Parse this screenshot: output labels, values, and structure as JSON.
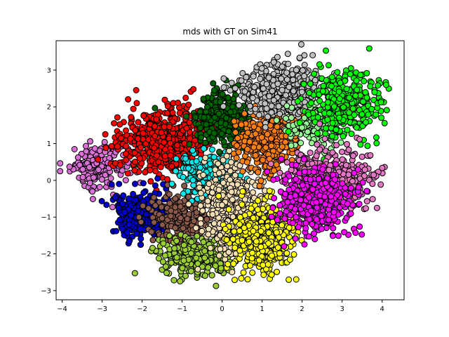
{
  "chart_data": {
    "type": "scatter",
    "title": "mds with GT on Sim41",
    "xlabel": "",
    "ylabel": "",
    "xlim": [
      -4.15,
      4.55
    ],
    "ylim": [
      -3.25,
      3.8
    ],
    "xticks": [
      -4,
      -3,
      -2,
      -1,
      0,
      1,
      2,
      3,
      4
    ],
    "yticks": [
      -3,
      -2,
      -1,
      0,
      1,
      2,
      3
    ],
    "xtick_labels": [
      "−4",
      "−3",
      "−2",
      "−1",
      "0",
      "1",
      "2",
      "3",
      "4"
    ],
    "ytick_labels": [
      "−3",
      "−2",
      "−1",
      "0",
      "1",
      "2",
      "3"
    ],
    "grid": false,
    "legend": "none",
    "marker_edge_color": "#000000",
    "clusters": [
      {
        "color": "#da70d6",
        "center": [
          -3.1,
          0.35
        ],
        "spread": [
          0.32,
          0.32
        ],
        "count": 160
      },
      {
        "color": "#ff0000",
        "center": [
          -1.45,
          1.05
        ],
        "spread": [
          0.55,
          0.42
        ],
        "count": 620
      },
      {
        "color": "#0000cd",
        "center": [
          -2.0,
          -0.9
        ],
        "spread": [
          0.38,
          0.32
        ],
        "count": 300
      },
      {
        "color": "#8b5a4a",
        "center": [
          -1.1,
          -1.0
        ],
        "spread": [
          0.35,
          0.35
        ],
        "count": 220
      },
      {
        "color": "#9acd32",
        "center": [
          -0.65,
          -2.1
        ],
        "spread": [
          0.45,
          0.25
        ],
        "count": 300
      },
      {
        "color": "#00eaea",
        "center": [
          -0.35,
          0.15
        ],
        "spread": [
          0.35,
          0.3
        ],
        "count": 220
      },
      {
        "color": "#f5deb3",
        "center": [
          0.3,
          -0.75
        ],
        "spread": [
          0.4,
          0.6
        ],
        "count": 480
      },
      {
        "color": "#ffff00",
        "center": [
          1.0,
          -1.55
        ],
        "spread": [
          0.4,
          0.45
        ],
        "count": 420
      },
      {
        "color": "#006400",
        "center": [
          0.0,
          1.7
        ],
        "spread": [
          0.35,
          0.35
        ],
        "count": 300
      },
      {
        "color": "#ff7f0e",
        "center": [
          1.15,
          1.05
        ],
        "spread": [
          0.4,
          0.4
        ],
        "count": 340
      },
      {
        "color": "#c0c0c0",
        "center": [
          1.5,
          2.45
        ],
        "spread": [
          0.55,
          0.38
        ],
        "count": 420
      },
      {
        "color": "#98fb98",
        "center": [
          2.35,
          1.5
        ],
        "spread": [
          0.35,
          0.3
        ],
        "count": 140
      },
      {
        "color": "#00ff00",
        "center": [
          3.05,
          2.1
        ],
        "spread": [
          0.45,
          0.45
        ],
        "count": 320
      },
      {
        "color": "#e377c2",
        "center": [
          2.75,
          0.1
        ],
        "spread": [
          0.55,
          0.38
        ],
        "count": 360
      },
      {
        "color": "#ff00ff",
        "center": [
          2.35,
          -0.6
        ],
        "spread": [
          0.42,
          0.42
        ],
        "count": 420
      }
    ]
  }
}
